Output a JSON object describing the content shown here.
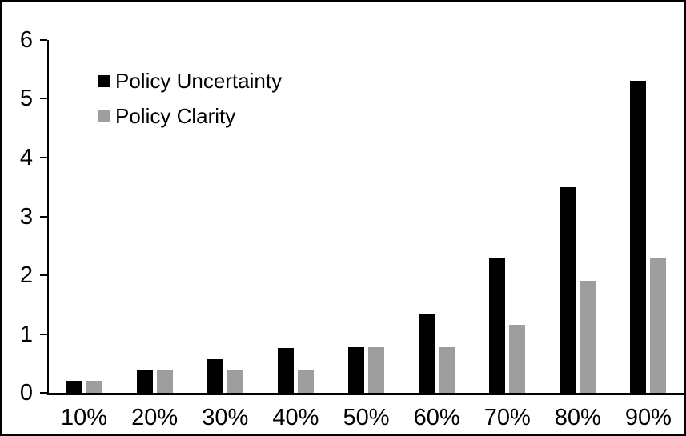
{
  "chart_data": {
    "type": "bar",
    "title": "",
    "xlabel": "",
    "ylabel": "",
    "categories": [
      "10%",
      "20%",
      "30%",
      "40%",
      "50%",
      "60%",
      "70%",
      "80%",
      "90%"
    ],
    "series": [
      {
        "name": "Policy Uncertainty",
        "color": "#000000",
        "values": [
          0.2,
          0.4,
          0.57,
          0.76,
          0.78,
          1.33,
          2.3,
          3.5,
          5.3
        ]
      },
      {
        "name": "Policy Clarity",
        "color": "#9e9e9e",
        "values": [
          0.2,
          0.4,
          0.4,
          0.4,
          0.77,
          0.77,
          1.15,
          1.9,
          2.3
        ]
      }
    ],
    "ylim": [
      0,
      6
    ],
    "yticks": [
      0,
      1,
      2,
      3,
      4,
      5,
      6
    ],
    "grid": false,
    "legend_position": "top-left-inside",
    "axis_color": "#000000",
    "background_color": "#ffffff",
    "border_color": "#000000"
  }
}
